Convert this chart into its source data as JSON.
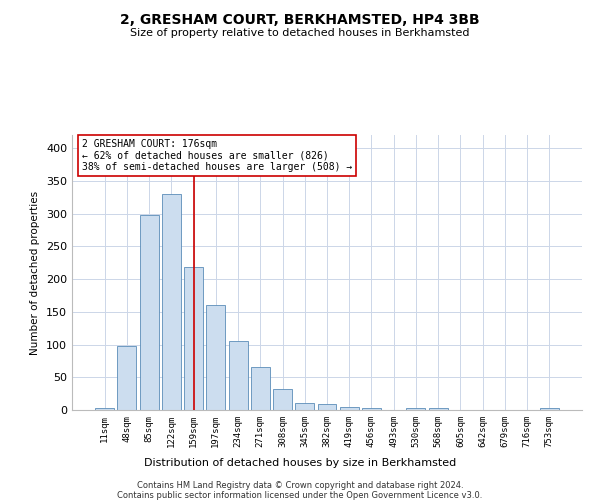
{
  "title": "2, GRESHAM COURT, BERKHAMSTED, HP4 3BB",
  "subtitle": "Size of property relative to detached houses in Berkhamsted",
  "xlabel": "Distribution of detached houses by size in Berkhamsted",
  "ylabel": "Number of detached properties",
  "bar_color": "#ccddef",
  "bar_edge_color": "#5b8db8",
  "categories": [
    "11sqm",
    "48sqm",
    "85sqm",
    "122sqm",
    "159sqm",
    "197sqm",
    "234sqm",
    "271sqm",
    "308sqm",
    "345sqm",
    "382sqm",
    "419sqm",
    "456sqm",
    "493sqm",
    "530sqm",
    "568sqm",
    "605sqm",
    "642sqm",
    "679sqm",
    "716sqm",
    "753sqm"
  ],
  "values": [
    3,
    98,
    298,
    330,
    218,
    160,
    105,
    65,
    32,
    10,
    9,
    5,
    3,
    0,
    3,
    3,
    0,
    0,
    0,
    0,
    3
  ],
  "vline_x_index": 4,
  "vline_color": "#cc0000",
  "ylim": [
    0,
    420
  ],
  "yticks": [
    0,
    50,
    100,
    150,
    200,
    250,
    300,
    350,
    400
  ],
  "annotation_line1": "2 GRESHAM COURT: 176sqm",
  "annotation_line2": "← 62% of detached houses are smaller (826)",
  "annotation_line3": "38% of semi-detached houses are larger (508) →",
  "annotation_box_color": "#ffffff",
  "annotation_box_edge": "#cc0000",
  "footer1": "Contains HM Land Registry data © Crown copyright and database right 2024.",
  "footer2": "Contains public sector information licensed under the Open Government Licence v3.0.",
  "background_color": "#ffffff",
  "grid_color": "#ccd6e8"
}
